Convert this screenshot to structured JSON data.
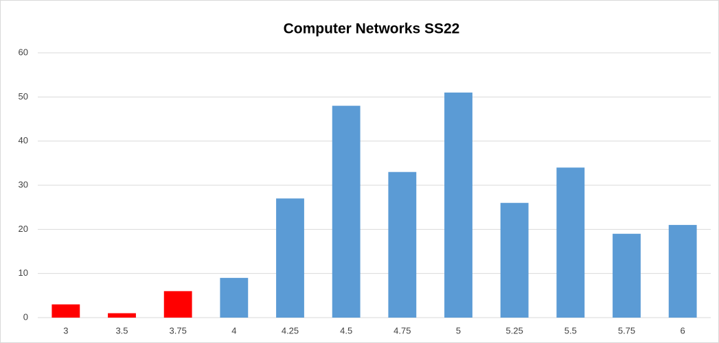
{
  "chart_data": {
    "type": "bar",
    "title": "Computer Networks SS22",
    "categories": [
      "3",
      "3.5",
      "3.75",
      "4",
      "4.25",
      "4.5",
      "4.75",
      "5",
      "5.25",
      "5.5",
      "5.75",
      "6"
    ],
    "values": [
      3,
      1,
      6,
      9,
      27,
      48,
      33,
      51,
      26,
      34,
      19,
      21
    ],
    "colors": [
      "#ff0000",
      "#ff0000",
      "#ff0000",
      "#5b9bd5",
      "#5b9bd5",
      "#5b9bd5",
      "#5b9bd5",
      "#5b9bd5",
      "#5b9bd5",
      "#5b9bd5",
      "#5b9bd5",
      "#5b9bd5"
    ],
    "ylim": [
      0,
      60
    ],
    "yticks": [
      0,
      10,
      20,
      30,
      40,
      50,
      60
    ],
    "grid": true
  }
}
